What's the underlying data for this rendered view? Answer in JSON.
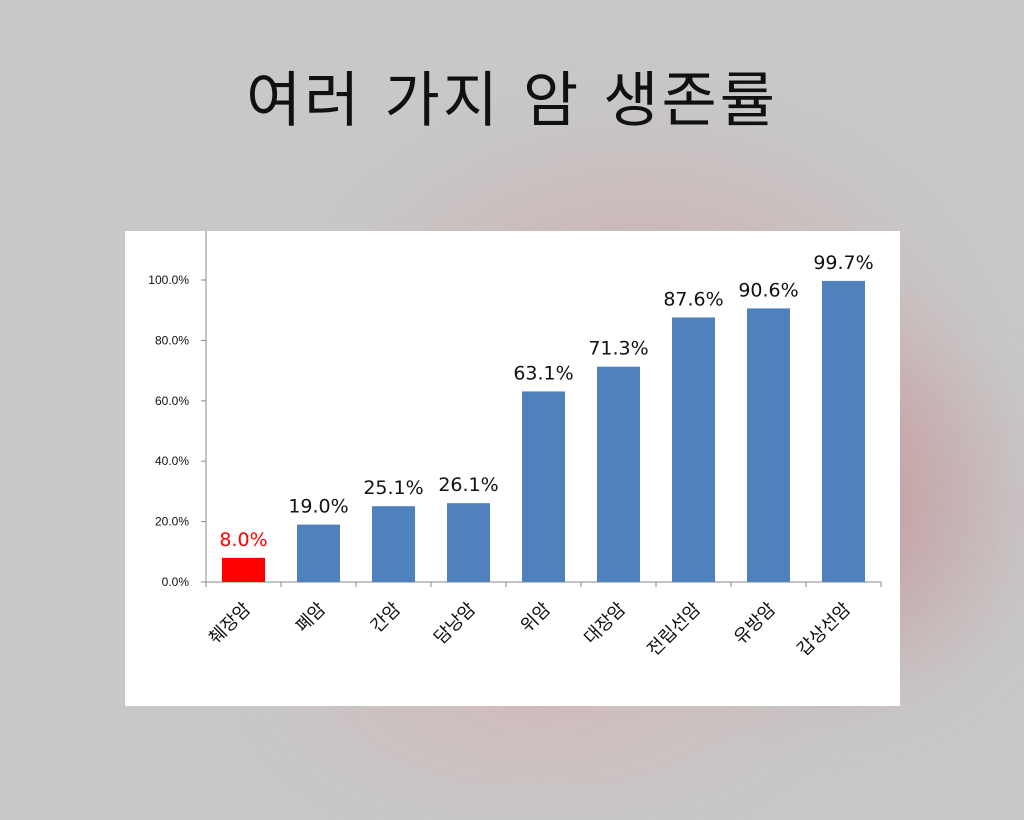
{
  "slide": {
    "title": "여러 가지 암 생존률"
  },
  "colors": {
    "bar": "#4f81bd",
    "highlight": "#ff0000",
    "axis": "#888888",
    "label": "#111111"
  },
  "chart_data": {
    "type": "bar",
    "categories": [
      "췌장암",
      "폐암",
      "간암",
      "담낭암",
      "위암",
      "대장암",
      "전립선암",
      "유방암",
      "갑상선암"
    ],
    "values": [
      8.0,
      19.0,
      25.1,
      26.1,
      63.1,
      71.3,
      87.6,
      90.6,
      99.7
    ],
    "data_labels": [
      "8.0%",
      "19.0%",
      "25.1%",
      "26.1%",
      "63.1%",
      "71.3%",
      "87.6%",
      "90.6%",
      "99.7%"
    ],
    "highlight_index": 0,
    "yticks": [
      0,
      20,
      40,
      60,
      80,
      100
    ],
    "ytick_labels": [
      "0.0%",
      "20.0%",
      "40.0%",
      "60.0%",
      "80.0%",
      "100.0%"
    ],
    "ylim": [
      0,
      100
    ],
    "grid": false,
    "legend": "none",
    "title": "",
    "xlabel": "",
    "ylabel": ""
  }
}
